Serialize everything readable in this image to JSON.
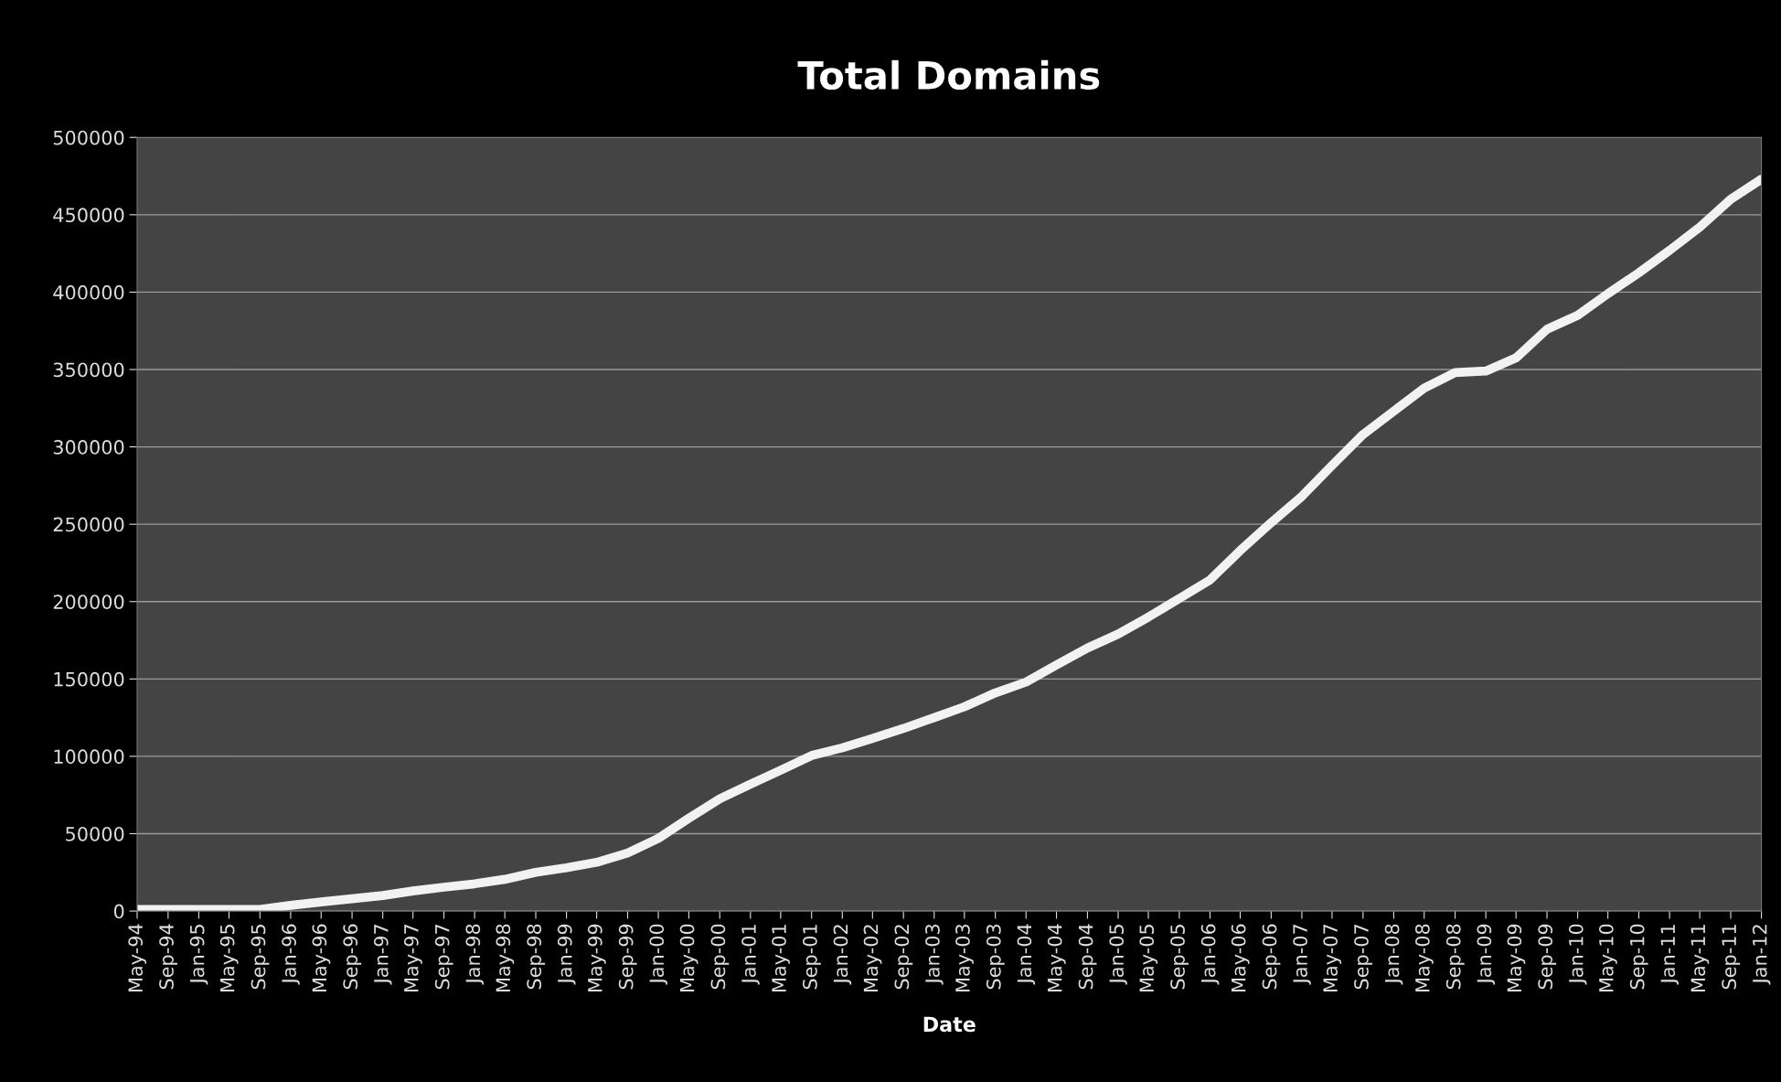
{
  "chart_data": {
    "type": "line",
    "title": "Total Domains",
    "xlabel": "Date",
    "x": [
      "1994-05",
      "1995-09",
      "1996-01",
      "1996-05",
      "1996-09",
      "1997-01",
      "1997-05",
      "1997-09",
      "1998-01",
      "1998-05",
      "1998-09",
      "1999-01",
      "1999-05",
      "1999-09",
      "2000-01",
      "2000-05",
      "2000-09",
      "2001-01",
      "2001-05",
      "2001-09",
      "2002-01",
      "2002-05",
      "2002-09",
      "2003-01",
      "2003-05",
      "2003-09",
      "2004-01",
      "2004-05",
      "2004-09",
      "2005-01",
      "2005-05",
      "2005-09",
      "2006-01",
      "2006-05",
      "2006-09",
      "2007-01",
      "2007-05",
      "2007-09",
      "2008-01",
      "2008-05",
      "2008-09",
      "2009-01",
      "2009-05",
      "2009-09",
      "2010-01",
      "2010-05",
      "2010-09",
      "2011-01",
      "2011-05",
      "2011-09",
      "2012-01"
    ],
    "series": [
      {
        "color": "#f2f2f2",
        "values": [
          1000,
          1000,
          3700,
          5900,
          8000,
          10000,
          13000,
          15400,
          17600,
          20500,
          25000,
          28000,
          31500,
          37500,
          47000,
          60000,
          72500,
          82000,
          91000,
          100500,
          105500,
          111500,
          118000,
          125000,
          132000,
          141000,
          148000,
          159000,
          170000,
          179000,
          190000,
          202000,
          214000,
          233000,
          251000,
          268000,
          288000,
          308000,
          323000,
          338000,
          348000,
          349000,
          357500,
          376000,
          385000,
          399000,
          412500,
          427000,
          442000,
          460000,
          473000
        ]
      }
    ],
    "xlim": [
      "1994-05",
      "2012-01"
    ],
    "xticks": [
      {
        "value": "1994-05",
        "label": "May-94"
      },
      {
        "value": "1994-09",
        "label": "Sep-94"
      },
      {
        "value": "1995-01",
        "label": "Jan-95"
      },
      {
        "value": "1995-05",
        "label": "May-95"
      },
      {
        "value": "1995-09",
        "label": "Sep-95"
      },
      {
        "value": "1996-01",
        "label": "Jan-96"
      },
      {
        "value": "1996-05",
        "label": "May-96"
      },
      {
        "value": "1996-09",
        "label": "Sep-96"
      },
      {
        "value": "1997-01",
        "label": "Jan-97"
      },
      {
        "value": "1997-05",
        "label": "May-97"
      },
      {
        "value": "1997-09",
        "label": "Sep-97"
      },
      {
        "value": "1998-01",
        "label": "Jan-98"
      },
      {
        "value": "1998-05",
        "label": "May-98"
      },
      {
        "value": "1998-09",
        "label": "Sep-98"
      },
      {
        "value": "1999-01",
        "label": "Jan-99"
      },
      {
        "value": "1999-05",
        "label": "May-99"
      },
      {
        "value": "1999-09",
        "label": "Sep-99"
      },
      {
        "value": "2000-01",
        "label": "Jan-00"
      },
      {
        "value": "2000-05",
        "label": "May-00"
      },
      {
        "value": "2000-09",
        "label": "Sep-00"
      },
      {
        "value": "2001-01",
        "label": "Jan-01"
      },
      {
        "value": "2001-05",
        "label": "May-01"
      },
      {
        "value": "2001-09",
        "label": "Sep-01"
      },
      {
        "value": "2002-01",
        "label": "Jan-02"
      },
      {
        "value": "2002-05",
        "label": "May-02"
      },
      {
        "value": "2002-09",
        "label": "Sep-02"
      },
      {
        "value": "2003-01",
        "label": "Jan-03"
      },
      {
        "value": "2003-05",
        "label": "May-03"
      },
      {
        "value": "2003-09",
        "label": "Sep-03"
      },
      {
        "value": "2004-01",
        "label": "Jan-04"
      },
      {
        "value": "2004-05",
        "label": "May-04"
      },
      {
        "value": "2004-09",
        "label": "Sep-04"
      },
      {
        "value": "2005-01",
        "label": "Jan-05"
      },
      {
        "value": "2005-05",
        "label": "May-05"
      },
      {
        "value": "2005-09",
        "label": "Sep-05"
      },
      {
        "value": "2006-01",
        "label": "Jan-06"
      },
      {
        "value": "2006-05",
        "label": "May-06"
      },
      {
        "value": "2006-09",
        "label": "Sep-06"
      },
      {
        "value": "2007-01",
        "label": "Jan-07"
      },
      {
        "value": "2007-05",
        "label": "May-07"
      },
      {
        "value": "2007-09",
        "label": "Sep-07"
      },
      {
        "value": "2008-01",
        "label": "Jan-08"
      },
      {
        "value": "2008-05",
        "label": "May-08"
      },
      {
        "value": "2008-09",
        "label": "Sep-08"
      },
      {
        "value": "2009-01",
        "label": "Jan-09"
      },
      {
        "value": "2009-05",
        "label": "May-09"
      },
      {
        "value": "2009-09",
        "label": "Sep-09"
      },
      {
        "value": "2010-01",
        "label": "Jan-10"
      },
      {
        "value": "2010-05",
        "label": "May-10"
      },
      {
        "value": "2010-09",
        "label": "Sep-10"
      },
      {
        "value": "2011-01",
        "label": "Jan-11"
      },
      {
        "value": "2011-05",
        "label": "May-11"
      },
      {
        "value": "2011-09",
        "label": "Sep-11"
      },
      {
        "value": "2012-01",
        "label": "Jan-12"
      }
    ],
    "ylim": [
      0,
      500000
    ],
    "yticks": [
      0,
      50000,
      100000,
      150000,
      200000,
      250000,
      300000,
      350000,
      400000,
      450000,
      500000
    ],
    "grid": "y",
    "marker": "none",
    "line_style": "solid"
  }
}
